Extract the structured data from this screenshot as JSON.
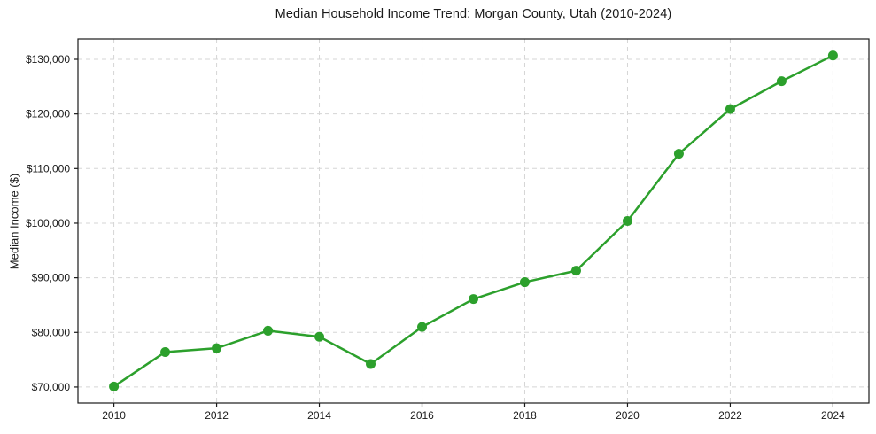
{
  "chart_data": {
    "type": "line",
    "title": "Median Household Income Trend: Morgan County, Utah (2010-2024)",
    "xlabel": "",
    "ylabel": "Median Income ($)",
    "x": [
      2010,
      2011,
      2012,
      2013,
      2014,
      2015,
      2016,
      2017,
      2018,
      2019,
      2020,
      2021,
      2022,
      2023,
      2024
    ],
    "values": [
      70100,
      76400,
      77100,
      80300,
      79200,
      74200,
      81000,
      86100,
      89200,
      91300,
      100400,
      112700,
      120900,
      126000,
      130700
    ],
    "xlim": [
      2009.3,
      2024.7
    ],
    "ylim": [
      67070,
      133730
    ],
    "x_ticks": [
      2010,
      2012,
      2014,
      2016,
      2018,
      2020,
      2022,
      2024
    ],
    "x_tick_labels": [
      "2010",
      "2012",
      "2014",
      "2016",
      "2018",
      "2020",
      "2022",
      "2024"
    ],
    "y_ticks": [
      70000,
      80000,
      90000,
      100000,
      110000,
      120000,
      130000
    ],
    "y_tick_labels": [
      "$70,000",
      "$80,000",
      "$90,000",
      "$100,000",
      "$110,000",
      "$120,000",
      "$130,000"
    ],
    "legend": null,
    "grid": {
      "visible": true,
      "style": "dashed",
      "color": "#d5d5d5"
    },
    "line": {
      "color": "#2ca02c",
      "width": 2.5,
      "marker": "circle",
      "marker_radius": 5.5
    },
    "axis_color": "#1a1a1a",
    "text_color": "#1a1a1a",
    "background": "#ffffff"
  }
}
